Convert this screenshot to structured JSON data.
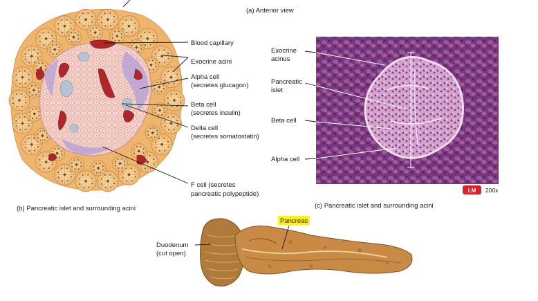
{
  "captions": {
    "a": "(a) Anterior view",
    "b": "(b) Pancreatic islet and surrounding acini",
    "c": "(c) Pancreatic islet and surrounding acini"
  },
  "drawing_labels": {
    "blood_capillary": "Blood capillary",
    "exocrine_acini": "Exocrine acini",
    "alpha_cell_1": "Alpha cell",
    "alpha_cell_2": "(secretes glucagon)",
    "beta_cell_1": "Beta cell",
    "beta_cell_2": "(secretes insulin)",
    "delta_cell_1": "Delta cell",
    "delta_cell_2": "(secretes somatostatin)",
    "f_cell_1": "F cell (secretes",
    "f_cell_2": "pancreatic polypeptide)"
  },
  "micrograph_labels": {
    "exocrine_acinus_1": "Exocrine",
    "exocrine_acinus_2": "acinus",
    "pancreatic_islet_1": "Pancreatic",
    "pancreatic_islet_2": "islet",
    "beta_cell": "Beta cell",
    "alpha_cell": "Alpha cell",
    "lm_badge": "LM",
    "magnification": "200x"
  },
  "specimen_labels": {
    "pancreas": "Pancreas",
    "duodenum_1": "Duodenum",
    "duodenum_2": "(cut open)"
  },
  "colors": {
    "acini": "#f0c07a",
    "islet": "#f5c9c0",
    "capillary": "#b0262a",
    "highlight": "#fff21a",
    "lm_badge": "#d8232a"
  }
}
